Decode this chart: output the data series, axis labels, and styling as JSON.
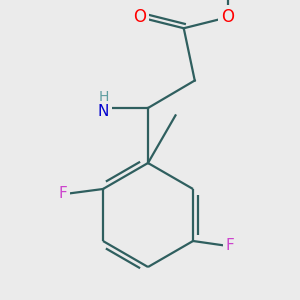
{
  "background_color": "#ebebeb",
  "atom_colors": {
    "C": "#000000",
    "H": "#5f9ea0",
    "O": "#ff0000",
    "N": "#0000cd",
    "F": "#cc44cc"
  },
  "bond_color": "#2f5f5f",
  "bond_width": 1.6,
  "figsize": [
    3.0,
    3.0
  ],
  "dpi": 100
}
